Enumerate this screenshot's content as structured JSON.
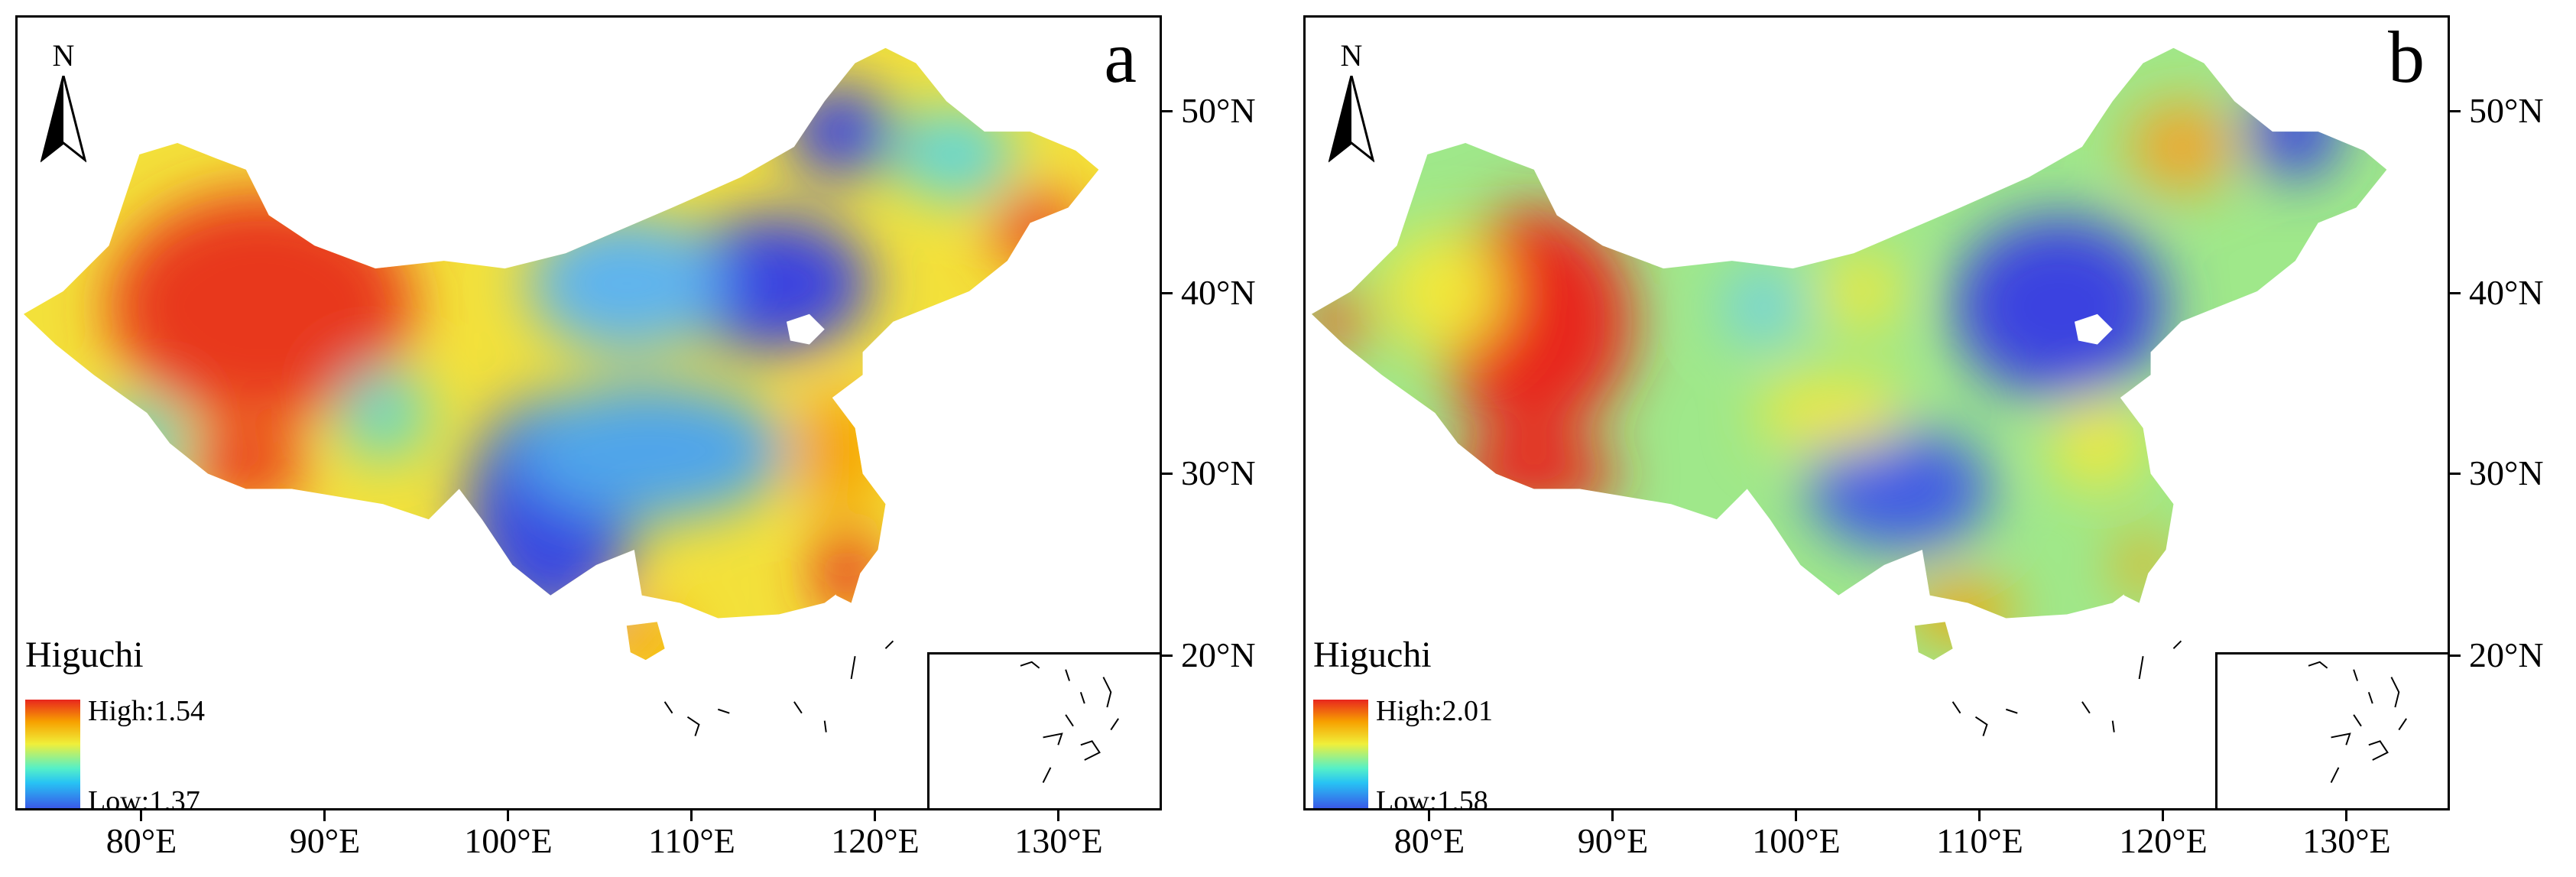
{
  "panels": [
    {
      "id": "a",
      "letter": "a",
      "north_label": "N",
      "legend": {
        "title": "Higuchi",
        "high": "High:1.54",
        "low": "Low:1.37"
      },
      "color_stops": [
        "#e8261e",
        "#f7a100",
        "#f0ef3a",
        "#55f0c8",
        "#27c3f4",
        "#3b50e7"
      ]
    },
    {
      "id": "b",
      "letter": "b",
      "north_label": "N",
      "legend": {
        "title": "Higuchi",
        "high": "High:2.01",
        "low": "Low:1.58"
      },
      "color_stops": [
        "#e8261e",
        "#f7a100",
        "#f0ef3a",
        "#55f0c8",
        "#27c3f4",
        "#3b50e7"
      ]
    }
  ],
  "lat_labels": [
    "50°N",
    "40°N",
    "30°N",
    "20°N"
  ],
  "lon_labels": [
    "80°E",
    "90°E",
    "100°E",
    "110°E",
    "120°E",
    "130°E"
  ]
}
